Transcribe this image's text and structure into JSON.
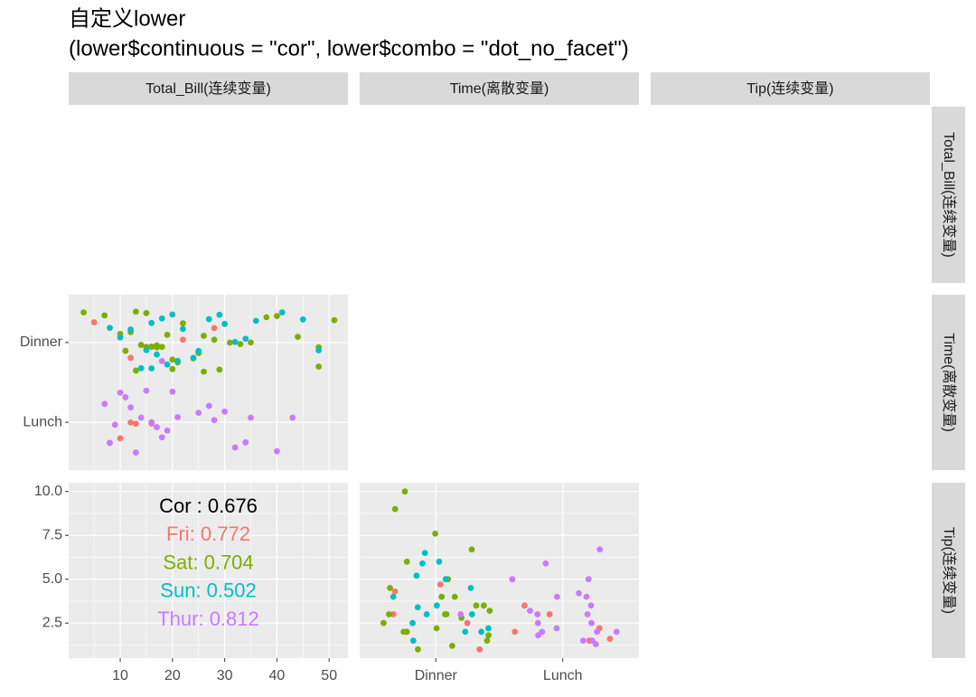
{
  "title": "自定义lower",
  "subtitle": "(lower$continuous = \"cor\", lower$combo = \"dot_no_facet\")",
  "column_strips": [
    "Total_Bill(连续变量)",
    "Time(离散变量)",
    "Tip(连续变量)"
  ],
  "row_strips": [
    "Total_Bill(连续变量)",
    "Time(离散变量)",
    "Tip(连续变量)"
  ],
  "chart_data": [
    {
      "type": "scatter",
      "xlim": [
        0.13,
        53.6
      ],
      "xticks": [
        10,
        20,
        30,
        40,
        50
      ],
      "categories": [
        "Dinner",
        "Lunch"
      ],
      "series": [
        {
          "color": "#F8766D",
          "x": [
            5,
            12,
            16,
            22,
            28,
            8,
            10,
            12,
            13,
            16
          ],
          "y": [
            "Dinner",
            "Dinner",
            "Dinner",
            "Dinner",
            "Dinner",
            "Lunch",
            "Lunch",
            "Lunch",
            "Lunch",
            "Lunch"
          ]
        },
        {
          "color": "#7CAE00",
          "x": [
            3,
            7,
            10,
            12,
            13,
            14,
            15,
            16,
            17,
            18,
            19,
            20,
            21,
            22,
            24,
            25,
            26,
            28,
            29,
            31,
            33,
            35,
            38,
            40,
            44,
            48,
            48,
            51,
            17,
            20,
            13,
            11,
            15,
            26
          ],
          "y": [
            "Dinner",
            "Dinner",
            "Dinner",
            "Dinner",
            "Dinner",
            "Dinner",
            "Dinner",
            "Dinner",
            "Dinner",
            "Dinner",
            "Dinner",
            "Dinner",
            "Dinner",
            "Dinner",
            "Dinner",
            "Dinner",
            "Dinner",
            "Dinner",
            "Dinner",
            "Dinner",
            "Dinner",
            "Dinner",
            "Dinner",
            "Dinner",
            "Dinner",
            "Dinner",
            "Dinner",
            "Dinner",
            "Dinner",
            "Dinner",
            "Dinner",
            "Dinner",
            "Dinner",
            "Dinner"
          ]
        },
        {
          "color": "#00BFC4",
          "x": [
            8,
            10,
            12,
            14,
            15,
            16,
            17,
            18,
            19,
            20,
            22,
            24,
            25,
            27,
            29,
            30,
            32,
            34,
            36,
            41,
            45,
            48,
            21,
            16
          ],
          "y": [
            "Dinner",
            "Dinner",
            "Dinner",
            "Dinner",
            "Dinner",
            "Dinner",
            "Dinner",
            "Dinner",
            "Dinner",
            "Dinner",
            "Dinner",
            "Dinner",
            "Dinner",
            "Dinner",
            "Dinner",
            "Dinner",
            "Dinner",
            "Dinner",
            "Dinner",
            "Dinner",
            "Dinner",
            "Dinner",
            "Dinner",
            "Dinner"
          ]
        },
        {
          "color": "#C77CFF",
          "x": [
            7,
            8,
            9,
            10,
            11,
            12,
            13,
            14,
            15,
            16,
            17,
            18,
            19,
            20,
            21,
            25,
            27,
            28,
            30,
            32,
            34,
            35,
            40,
            43,
            18
          ],
          "y": [
            "Lunch",
            "Lunch",
            "Lunch",
            "Lunch",
            "Lunch",
            "Lunch",
            "Lunch",
            "Lunch",
            "Lunch",
            "Lunch",
            "Lunch",
            "Lunch",
            "Lunch",
            "Lunch",
            "Lunch",
            "Lunch",
            "Lunch",
            "Lunch",
            "Lunch",
            "Lunch",
            "Lunch",
            "Lunch",
            "Lunch",
            "Lunch",
            "Dinner"
          ]
        }
      ]
    },
    {
      "type": "text",
      "ylim": [
        0.5,
        10.5
      ],
      "yticks": [
        {
          "value": 2.5,
          "label": "2.5"
        },
        {
          "value": 5,
          "label": "5.0"
        },
        {
          "value": 7.5,
          "label": "7.5"
        },
        {
          "value": 10,
          "label": "10.0"
        }
      ],
      "annotations": [
        {
          "text": "Cor : 0.676",
          "color": "#000000"
        },
        {
          "text": "Fri: 0.772",
          "color": "#F8766D"
        },
        {
          "text": "Sat: 0.704",
          "color": "#7CAE00"
        },
        {
          "text": "Sun: 0.502",
          "color": "#00BFC4"
        },
        {
          "text": "Thur: 0.812",
          "color": "#C77CFF"
        }
      ]
    },
    {
      "type": "dot",
      "categories": [
        "Dinner",
        "Lunch"
      ],
      "series": [
        {
          "color": "#F8766D",
          "x": [
            "Dinner",
            "Dinner",
            "Dinner",
            "Dinner",
            "Dinner",
            "Lunch",
            "Lunch",
            "Lunch",
            "Lunch",
            "Lunch",
            "Lunch"
          ],
          "values": [
            4.3,
            3,
            1,
            4.7,
            2.5,
            3,
            1.5,
            2,
            2.2,
            1.6,
            3.5
          ]
        },
        {
          "color": "#7CAE00",
          "x": [
            "Dinner",
            "Dinner",
            "Dinner",
            "Dinner",
            "Dinner",
            "Dinner",
            "Dinner",
            "Dinner",
            "Dinner",
            "Dinner",
            "Dinner",
            "Dinner",
            "Dinner",
            "Dinner",
            "Dinner",
            "Dinner",
            "Dinner",
            "Dinner",
            "Dinner",
            "Dinner",
            "Dinner",
            "Dinner",
            "Dinner",
            "Dinner",
            "Dinner"
          ],
          "values": [
            1,
            1.5,
            2,
            2,
            2.5,
            3,
            3,
            3.5,
            4,
            4.5,
            5,
            6,
            7.6,
            9,
            10,
            1.2,
            2.2,
            3.2,
            2.8,
            6.7,
            1.8,
            2,
            3,
            3.5,
            4
          ]
        },
        {
          "color": "#00BFC4",
          "x": [
            "Dinner",
            "Dinner",
            "Dinner",
            "Dinner",
            "Dinner",
            "Dinner",
            "Dinner",
            "Dinner",
            "Dinner",
            "Dinner",
            "Dinner",
            "Dinner",
            "Dinner",
            "Dinner",
            "Dinner",
            "Dinner"
          ],
          "values": [
            2,
            2.5,
            3,
            3.5,
            4,
            5,
            5.2,
            6,
            6.5,
            3.4,
            2,
            1.5,
            4.5,
            3,
            2.2,
            5.9
          ]
        },
        {
          "color": "#C77CFF",
          "x": [
            "Dinner",
            "Lunch",
            "Lunch",
            "Lunch",
            "Lunch",
            "Lunch",
            "Lunch",
            "Lunch",
            "Lunch",
            "Lunch",
            "Lunch",
            "Lunch",
            "Lunch",
            "Lunch",
            "Lunch",
            "Lunch",
            "Lunch",
            "Lunch",
            "Lunch",
            "Lunch",
            "Lunch",
            "Lunch",
            "Lunch"
          ],
          "values": [
            3,
            1.5,
            2,
            2,
            2.5,
            3,
            3.5,
            4,
            4,
            5,
            5.9,
            6.7,
            4.2,
            2,
            1.8,
            1.3,
            2.5,
            3,
            3.2,
            2.2,
            5,
            1.5,
            2
          ]
        }
      ]
    }
  ]
}
